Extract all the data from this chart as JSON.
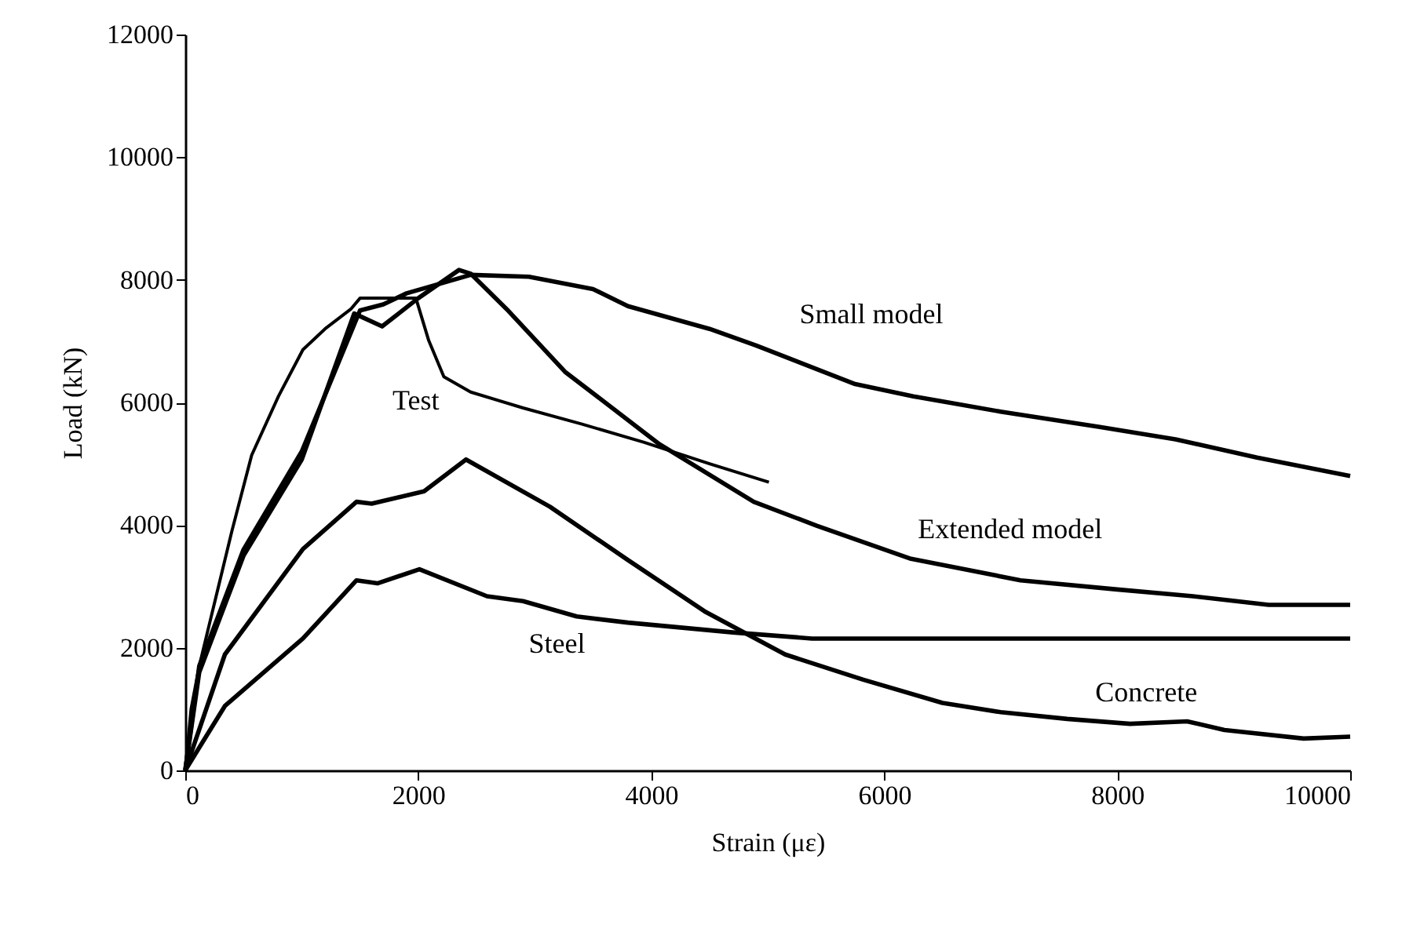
{
  "chart_data": {
    "type": "line",
    "xlabel": "Strain (με)",
    "ylabel": "Load (kN)",
    "xlim": [
      0,
      10000
    ],
    "ylim": [
      0,
      12000
    ],
    "xticks": [
      0,
      2000,
      4000,
      6000,
      8000,
      10000
    ],
    "yticks": [
      0,
      2000,
      4000,
      6000,
      8000,
      10000,
      12000
    ],
    "grid": false,
    "marker": "none",
    "line_style": "solid",
    "series": [
      {
        "name": "Small model",
        "color": "#000000",
        "x": [
          0,
          120,
          500,
          1000,
          1500,
          1700,
          1900,
          2450,
          2950,
          3500,
          3800,
          4500,
          4900,
          5750,
          6250,
          7000,
          7850,
          8500,
          9200,
          10000
        ],
        "values": [
          0,
          1700,
          3600,
          5200,
          7500,
          7600,
          7780,
          8080,
          8050,
          7850,
          7570,
          7200,
          6930,
          6300,
          6100,
          5850,
          5600,
          5400,
          5100,
          4800
        ]
      },
      {
        "name": "Extended model",
        "color": "#000000",
        "x": [
          0,
          120,
          500,
          1000,
          1450,
          1690,
          2000,
          2350,
          2450,
          2760,
          3260,
          4070,
          4880,
          5420,
          6230,
          7170,
          8000,
          8650,
          9300,
          10000
        ],
        "values": [
          0,
          1600,
          3500,
          5070,
          7450,
          7240,
          7700,
          8160,
          8100,
          7520,
          6500,
          5320,
          4380,
          3990,
          3450,
          3100,
          2950,
          2840,
          2700,
          2700
        ]
      },
      {
        "name": "Test",
        "color": "#000000",
        "x": [
          0,
          50,
          120,
          200,
          400,
          570,
          800,
          1010,
          1200,
          1420,
          1500,
          1980,
          2090,
          2220,
          2450,
          2900,
          3400,
          3940,
          4500,
          5010
        ],
        "values": [
          0,
          1000,
          1700,
          2330,
          3900,
          5140,
          6100,
          6860,
          7200,
          7520,
          7700,
          7700,
          7010,
          6420,
          6170,
          5910,
          5650,
          5350,
          5000,
          4700
        ]
      },
      {
        "name": "Concrete",
        "color": "#000000",
        "x": [
          0,
          340,
          1010,
          1470,
          1600,
          2050,
          2410,
          3130,
          3800,
          4470,
          5150,
          5820,
          6500,
          7000,
          7570,
          8110,
          8600,
          8920,
          9600,
          10000
        ],
        "values": [
          0,
          1890,
          3610,
          4380,
          4350,
          4550,
          5070,
          4300,
          3430,
          2580,
          1890,
          1480,
          1100,
          950,
          840,
          760,
          800,
          660,
          520,
          550
        ]
      },
      {
        "name": "Steel",
        "color": "#000000",
        "x": [
          0,
          340,
          1010,
          1470,
          1650,
          2010,
          2590,
          2900,
          3360,
          3800,
          4700,
          5380,
          6500,
          8000,
          10000
        ],
        "values": [
          0,
          1050,
          2150,
          3100,
          3050,
          3280,
          2840,
          2760,
          2510,
          2410,
          2250,
          2150,
          2150,
          2150,
          2150
        ]
      }
    ]
  }
}
